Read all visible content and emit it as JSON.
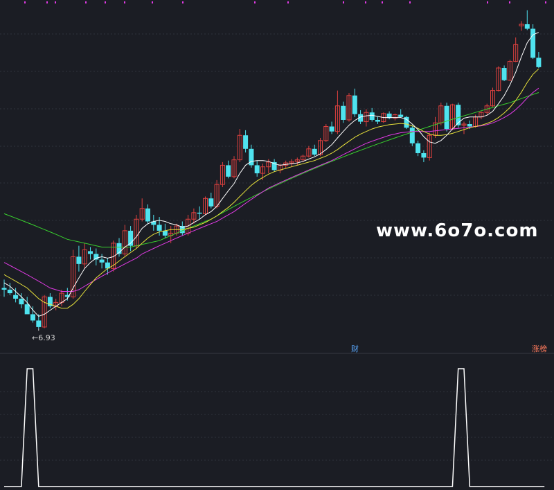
{
  "watermark": "www.6o7o.com",
  "low_price_label": "←6.93",
  "badges": {
    "finance": "财",
    "limit_list": "涨榜"
  },
  "colors": {
    "background": "#1b1d24",
    "grid": "#2f323b",
    "up": "#e0413f",
    "down": "#4fe3ef",
    "ma_white": "#ffffff",
    "ma_yellow": "#e8e23b",
    "ma_magenta": "#e23be6",
    "ma_green": "#39d12e",
    "indicator": "#ffffff",
    "markers": "#e23be6"
  },
  "chart_data": [
    {
      "type": "candlestick",
      "title": "",
      "candles": [
        [
          9.0,
          9.5,
          8.5,
          8.9
        ],
        [
          8.9,
          9.3,
          8.6,
          8.7
        ],
        [
          8.6,
          9.0,
          8.2,
          8.4
        ],
        [
          8.4,
          8.7,
          7.9,
          8.1
        ],
        [
          8.1,
          8.5,
          7.7,
          7.6
        ],
        [
          7.6,
          8.0,
          7.2,
          7.3
        ],
        [
          7.3,
          7.6,
          6.93,
          7.0
        ],
        [
          7.0,
          8.6,
          6.95,
          8.5
        ],
        [
          8.5,
          8.7,
          7.9,
          8.0
        ],
        [
          8.0,
          8.4,
          7.8,
          8.2
        ],
        [
          8.2,
          8.9,
          8.0,
          8.7
        ],
        [
          8.6,
          9.0,
          8.3,
          8.5
        ],
        [
          8.5,
          11.5,
          8.4,
          11.0
        ],
        [
          11.0,
          11.8,
          10.0,
          10.5
        ],
        [
          10.5,
          12.0,
          10.2,
          11.5
        ],
        [
          11.4,
          11.7,
          10.8,
          11.2
        ],
        [
          11.2,
          11.6,
          10.4,
          10.8
        ],
        [
          10.8,
          11.2,
          10.2,
          10.6
        ],
        [
          10.6,
          10.9,
          9.8,
          10.2
        ],
        [
          10.2,
          12.2,
          10.0,
          12.0
        ],
        [
          12.0,
          12.4,
          11.0,
          11.2
        ],
        [
          11.2,
          13.5,
          11.0,
          13.0
        ],
        [
          13.0,
          13.4,
          11.4,
          11.8
        ],
        [
          11.8,
          14.4,
          11.6,
          14.0
        ],
        [
          14.0,
          16.0,
          13.8,
          15.0
        ],
        [
          15.0,
          15.4,
          13.6,
          13.8
        ],
        [
          13.8,
          14.4,
          13.0,
          13.5
        ],
        [
          13.5,
          14.2,
          12.6,
          13.0
        ],
        [
          13.0,
          13.6,
          12.4,
          12.6
        ],
        [
          12.6,
          13.4,
          12.0,
          12.8
        ],
        [
          12.8,
          13.6,
          12.6,
          13.4
        ],
        [
          13.4,
          13.8,
          12.6,
          12.8
        ],
        [
          12.8,
          14.4,
          12.6,
          14.0
        ],
        [
          14.0,
          15.0,
          13.6,
          14.6
        ],
        [
          14.6,
          15.2,
          14.0,
          14.5
        ],
        [
          14.5,
          16.2,
          14.4,
          16.0
        ],
        [
          16.0,
          16.6,
          15.0,
          15.2
        ],
        [
          15.2,
          18.0,
          15.0,
          17.5
        ],
        [
          17.5,
          20.2,
          17.2,
          19.8
        ],
        [
          19.8,
          20.4,
          18.2,
          18.4
        ],
        [
          18.4,
          21.0,
          18.2,
          20.5
        ],
        [
          20.5,
          25.0,
          20.2,
          24.0
        ],
        [
          24.0,
          24.8,
          21.5,
          22.0
        ],
        [
          22.0,
          22.6,
          19.5,
          19.8
        ],
        [
          19.8,
          20.4,
          18.4,
          18.8
        ],
        [
          18.8,
          20.0,
          18.0,
          19.6
        ],
        [
          19.6,
          20.6,
          18.8,
          20.2
        ],
        [
          20.2,
          20.6,
          19.0,
          19.2
        ],
        [
          19.2,
          20.0,
          18.8,
          19.8
        ],
        [
          19.8,
          20.4,
          19.4,
          20.1
        ],
        [
          20.1,
          20.6,
          19.6,
          20.3
        ],
        [
          20.3,
          20.8,
          19.8,
          20.5
        ],
        [
          20.5,
          21.2,
          20.2,
          21.0
        ],
        [
          21.0,
          22.4,
          20.8,
          22.0
        ],
        [
          22.0,
          22.6,
          21.0,
          21.2
        ],
        [
          21.2,
          23.6,
          21.0,
          23.2
        ],
        [
          23.2,
          25.8,
          23.0,
          25.4
        ],
        [
          25.4,
          26.2,
          24.2,
          24.6
        ],
        [
          24.6,
          32.0,
          24.2,
          29.0
        ],
        [
          29.0,
          29.8,
          26.0,
          26.5
        ],
        [
          26.5,
          31.5,
          26.2,
          31.0
        ],
        [
          31.0,
          32.4,
          27.0,
          27.5
        ],
        [
          27.5,
          28.2,
          25.8,
          26.2
        ],
        [
          26.2,
          28.4,
          25.4,
          27.8
        ],
        [
          27.8,
          28.6,
          26.2,
          26.5
        ],
        [
          26.5,
          27.0,
          25.8,
          26.2
        ],
        [
          26.2,
          27.8,
          26.0,
          27.6
        ],
        [
          27.6,
          28.0,
          26.6,
          26.8
        ],
        [
          26.8,
          27.6,
          26.4,
          27.4
        ],
        [
          27.4,
          28.4,
          27.0,
          27.0
        ],
        [
          27.0,
          27.2,
          25.0,
          25.2
        ],
        [
          25.2,
          25.6,
          22.4,
          22.8
        ],
        [
          22.8,
          23.2,
          21.0,
          21.4
        ],
        [
          21.4,
          21.8,
          20.2,
          20.8
        ],
        [
          20.8,
          24.4,
          20.4,
          24.0
        ],
        [
          24.0,
          27.0,
          23.6,
          26.0
        ],
        [
          26.0,
          29.6,
          25.6,
          29.0
        ],
        [
          29.0,
          29.6,
          24.6,
          25.0
        ],
        [
          25.0,
          29.4,
          24.8,
          29.2
        ],
        [
          29.2,
          29.6,
          25.2,
          25.6
        ],
        [
          25.6,
          26.2,
          24.2,
          25.8
        ],
        [
          25.8,
          26.4,
          25.0,
          25.4
        ],
        [
          25.4,
          27.4,
          25.2,
          27.0
        ],
        [
          27.0,
          28.0,
          26.6,
          27.8
        ],
        [
          27.8,
          29.4,
          27.4,
          29.0
        ],
        [
          29.0,
          32.6,
          28.8,
          32.0
        ],
        [
          32.0,
          37.4,
          31.8,
          37.0
        ],
        [
          37.0,
          37.6,
          34.0,
          34.2
        ],
        [
          34.2,
          39.0,
          34.0,
          38.6
        ],
        [
          38.6,
          45.0,
          38.4,
          43.0
        ],
        [
          48.5,
          50.0,
          47.0,
          49.0
        ],
        [
          49.0,
          53.6,
          47.2,
          47.6
        ],
        [
          47.6,
          49.0,
          39.2,
          39.5
        ],
        [
          39.5,
          41.0,
          37.0,
          37.2
        ]
      ],
      "ma_white": [
        9.3,
        9.1,
        8.8,
        8.5,
        8.2,
        7.8,
        7.5,
        7.6,
        7.8,
        8.0,
        8.2,
        8.4,
        9.0,
        9.6,
        10.2,
        10.6,
        10.9,
        11.0,
        10.9,
        11.0,
        11.3,
        11.7,
        12.0,
        12.5,
        13.2,
        13.6,
        13.8,
        13.9,
        13.8,
        13.6,
        13.5,
        13.3,
        13.4,
        13.7,
        14.0,
        14.4,
        14.7,
        15.2,
        16.0,
        16.8,
        17.6,
        18.8,
        19.8,
        20.3,
        20.4,
        20.4,
        20.3,
        20.0,
        19.8,
        19.9,
        20.0,
        20.1,
        20.3,
        20.6,
        20.9,
        21.3,
        21.9,
        22.6,
        23.6,
        24.6,
        25.6,
        26.4,
        27.0,
        27.2,
        27.3,
        27.1,
        26.9,
        26.9,
        26.9,
        26.9,
        26.6,
        25.8,
        24.9,
        23.8,
        23.0,
        22.8,
        23.2,
        24.0,
        25.0,
        26.0,
        26.8,
        27.0,
        27.0,
        27.0,
        27.3,
        28.0,
        29.4,
        31.0,
        33.2,
        36.0,
        39.8,
        43.5,
        45.8,
        46.5
      ],
      "ma_yellow": [
        9.8,
        9.6,
        9.4,
        9.2,
        9.0,
        8.7,
        8.4,
        8.2,
        8.1,
        8.0,
        7.9,
        7.9,
        8.1,
        8.4,
        8.8,
        9.2,
        9.6,
        9.9,
        10.2,
        10.4,
        10.7,
        11.0,
        11.3,
        11.6,
        12.0,
        12.4,
        12.7,
        12.9,
        13.0,
        13.1,
        13.1,
        13.1,
        13.2,
        13.3,
        13.5,
        13.7,
        14.0,
        14.3,
        14.7,
        15.1,
        15.6,
        16.2,
        16.8,
        17.4,
        17.9,
        18.3,
        18.7,
        19.0,
        19.2,
        19.4,
        19.6,
        19.8,
        20.0,
        20.2,
        20.4,
        20.7,
        21.0,
        21.4,
        21.9,
        22.5,
        23.1,
        23.7,
        24.2,
        24.6,
        25.0,
        25.3,
        25.5,
        25.7,
        25.8,
        25.9,
        25.8,
        25.5,
        25.1,
        24.6,
        24.2,
        24.0,
        24.0,
        24.1,
        24.3,
        24.6,
        24.9,
        25.2,
        25.4,
        25.6,
        25.9,
        26.3,
        26.9,
        27.7,
        28.7,
        30.0,
        31.7,
        33.7,
        35.5,
        36.8
      ],
      "ma_magenta": [
        10.6,
        10.4,
        10.2,
        10.0,
        9.8,
        9.6,
        9.4,
        9.2,
        9.0,
        8.9,
        8.8,
        8.8,
        8.8,
        8.9,
        9.1,
        9.3,
        9.5,
        9.7,
        9.9,
        10.1,
        10.3,
        10.5,
        10.7,
        10.9,
        11.2,
        11.4,
        11.6,
        11.8,
        12.0,
        12.2,
        12.4,
        12.6,
        12.8,
        13.0,
        13.2,
        13.4,
        13.6,
        13.8,
        14.1,
        14.4,
        14.7,
        15.1,
        15.5,
        15.9,
        16.3,
        16.7,
        17.1,
        17.4,
        17.7,
        18.0,
        18.3,
        18.6,
        18.9,
        19.2,
        19.5,
        19.8,
        20.1,
        20.4,
        20.8,
        21.2,
        21.6,
        22.0,
        22.4,
        22.8,
        23.1,
        23.4,
        23.7,
        24.0,
        24.2,
        24.4,
        24.5,
        24.6,
        24.6,
        24.6,
        24.6,
        24.7,
        24.8,
        24.9,
        25.0,
        25.1,
        25.2,
        25.3,
        25.4,
        25.5,
        25.7,
        26.0,
        26.4,
        26.9,
        27.5,
        28.3,
        29.3,
        30.5,
        31.6,
        32.5
      ],
      "ma_green": [
        14.5,
        14.3,
        14.1,
        13.9,
        13.7,
        13.5,
        13.3,
        13.1,
        12.9,
        12.7,
        12.5,
        12.3,
        12.2,
        12.1,
        12.0,
        11.9,
        11.8,
        11.7,
        11.7,
        11.7,
        11.7,
        11.7,
        11.7,
        11.8,
        11.9,
        12.0,
        12.1,
        12.2,
        12.4,
        12.6,
        12.8,
        13.0,
        13.2,
        13.4,
        13.6,
        13.8,
        14.0,
        14.3,
        14.6,
        14.9,
        15.2,
        15.5,
        15.8,
        16.1,
        16.4,
        16.7,
        17.0,
        17.3,
        17.6,
        17.9,
        18.2,
        18.5,
        18.8,
        19.1,
        19.4,
        19.7,
        20.0,
        20.3,
        20.6,
        20.9,
        21.2,
        21.5,
        21.8,
        22.1,
        22.4,
        22.7,
        23.0,
        23.3,
        23.6,
        23.9,
        24.2,
        24.5,
        24.8,
        25.1,
        25.4,
        25.7,
        26.0,
        26.3,
        26.6,
        26.9,
        27.2,
        27.5,
        27.8,
        28.1,
        28.4,
        28.7,
        29.0,
        29.3,
        29.6,
        30.0,
        30.4,
        30.8,
        31.2,
        31.6
      ],
      "low_marker": {
        "index": 6,
        "value": 6.93
      }
    },
    {
      "type": "line",
      "title": "",
      "series": [
        {
          "values": [
            0,
            0,
            0,
            0,
            1,
            1,
            0,
            0,
            0,
            0,
            0,
            0,
            0,
            0,
            0,
            0,
            0,
            0,
            0,
            0,
            0,
            0,
            0,
            0,
            0,
            0,
            0,
            0,
            0,
            0,
            0,
            0,
            0,
            0,
            0,
            0,
            0,
            0,
            0,
            0,
            0,
            0,
            0,
            0,
            0,
            0,
            0,
            0,
            0,
            0,
            0,
            0,
            0,
            0,
            0,
            0,
            0,
            0,
            0,
            0,
            0,
            0,
            0,
            0,
            0,
            0,
            0,
            0,
            0,
            0,
            0,
            0,
            0,
            0,
            0,
            0,
            0,
            0,
            0,
            1,
            1,
            0,
            0,
            0,
            0,
            0,
            0,
            0,
            0,
            0,
            0,
            0,
            0,
            0,
            0
          ]
        }
      ]
    }
  ]
}
